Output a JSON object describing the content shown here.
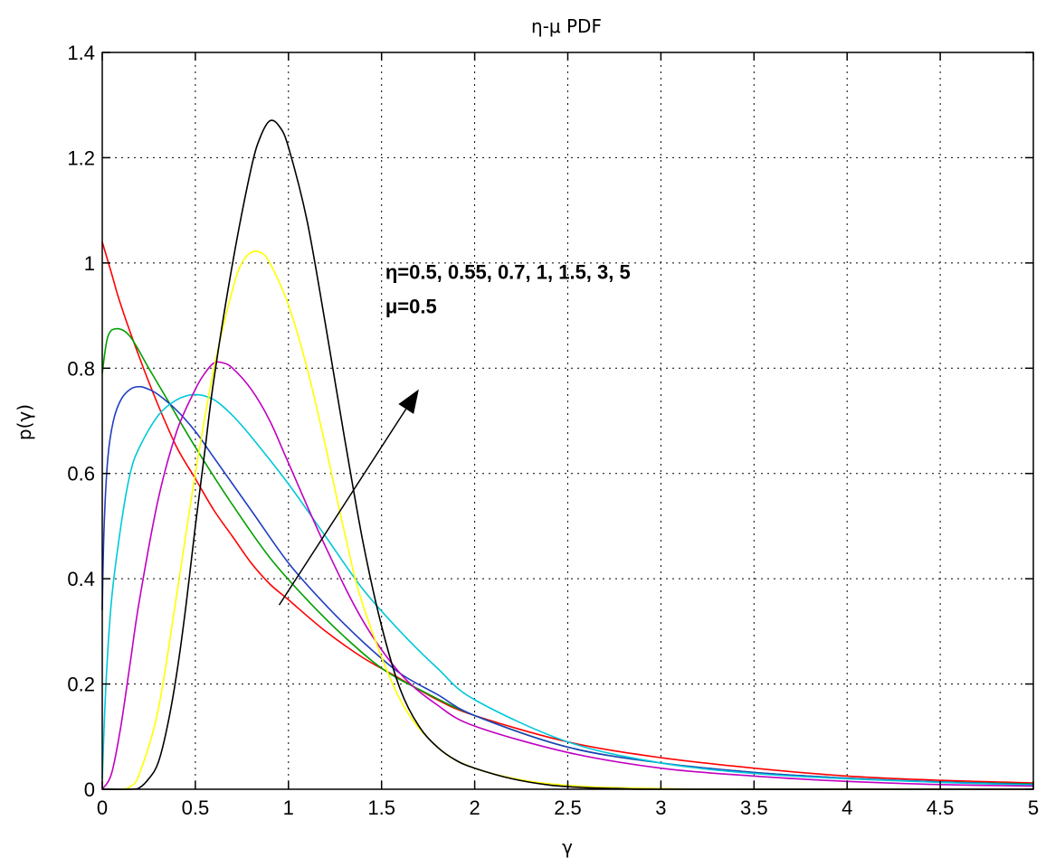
{
  "chart_data": {
    "type": "line",
    "title": "η-μ PDF",
    "xlabel": "γ",
    "ylabel": "p(γ)",
    "xlim": [
      0,
      5
    ],
    "ylim": [
      0,
      1.4
    ],
    "xticks": [
      0,
      0.5,
      1,
      1.5,
      2,
      2.5,
      3,
      3.5,
      4,
      4.5,
      5
    ],
    "xtick_labels": [
      "0",
      "0.5",
      "1",
      "1.5",
      "2",
      "2.5",
      "3",
      "3.5",
      "4",
      "4.5",
      "5"
    ],
    "yticks": [
      0,
      0.2,
      0.4,
      0.6,
      0.8,
      1,
      1.2,
      1.4
    ],
    "ytick_labels": [
      "0",
      "0.2",
      "0.4",
      "0.6",
      "0.8",
      "1",
      "1.2",
      "1.4"
    ],
    "grid": true,
    "annotation": {
      "lines": [
        "η=0.5, 0.55, 0.7, 1, 1.5, 3, 5",
        "μ=0.5"
      ],
      "text_anchor": [
        1.52,
        0.97
      ],
      "arrow_from": [
        0.95,
        0.35
      ],
      "arrow_to": [
        1.7,
        0.76
      ]
    },
    "series": [
      {
        "color": "#ff0000",
        "x": [
          0,
          0.05,
          0.1,
          0.2,
          0.3,
          0.4,
          0.5,
          0.6,
          0.7,
          0.8,
          0.9,
          1.0,
          1.2,
          1.4,
          1.6,
          1.8,
          2.0,
          2.5,
          3.0,
          3.5,
          4.0,
          4.5,
          5.0
        ],
        "y": [
          1.04,
          0.98,
          0.92,
          0.82,
          0.73,
          0.65,
          0.59,
          0.53,
          0.48,
          0.43,
          0.39,
          0.36,
          0.3,
          0.25,
          0.21,
          0.17,
          0.14,
          0.09,
          0.06,
          0.04,
          0.025,
          0.017,
          0.012
        ]
      },
      {
        "color": "#00a000",
        "x": [
          0,
          0.03,
          0.08,
          0.15,
          0.25,
          0.35,
          0.5,
          0.7,
          0.9,
          1.1,
          1.3,
          1.5,
          1.7,
          2.0,
          2.5,
          3.0,
          3.5,
          4.0,
          4.5,
          5.0
        ],
        "y": [
          0.79,
          0.86,
          0.875,
          0.86,
          0.8,
          0.74,
          0.65,
          0.54,
          0.44,
          0.36,
          0.29,
          0.23,
          0.19,
          0.14,
          0.08,
          0.05,
          0.032,
          0.021,
          0.014,
          0.01
        ]
      },
      {
        "color": "#1f3fbf",
        "x": [
          0,
          0.01,
          0.03,
          0.06,
          0.1,
          0.15,
          0.2,
          0.25,
          0.3,
          0.4,
          0.5,
          0.6,
          0.8,
          1.0,
          1.2,
          1.4,
          1.6,
          1.8,
          2.0,
          2.5,
          3.0,
          3.5,
          4.0,
          4.5,
          5.0
        ],
        "y": [
          0.34,
          0.5,
          0.63,
          0.7,
          0.74,
          0.76,
          0.765,
          0.76,
          0.75,
          0.72,
          0.68,
          0.63,
          0.53,
          0.43,
          0.35,
          0.28,
          0.22,
          0.18,
          0.14,
          0.08,
          0.05,
          0.032,
          0.021,
          0.014,
          0.009
        ]
      },
      {
        "color": "#00c8d8",
        "x": [
          0,
          0.02,
          0.05,
          0.1,
          0.15,
          0.2,
          0.3,
          0.4,
          0.5,
          0.6,
          0.7,
          0.8,
          1.0,
          1.2,
          1.4,
          1.6,
          1.8,
          2.0,
          2.5,
          3.0,
          3.5,
          4.0,
          4.5,
          5.0
        ],
        "y": [
          0.02,
          0.2,
          0.36,
          0.5,
          0.6,
          0.65,
          0.71,
          0.74,
          0.75,
          0.74,
          0.71,
          0.67,
          0.58,
          0.48,
          0.38,
          0.3,
          0.23,
          0.17,
          0.09,
          0.05,
          0.03,
          0.02,
          0.013,
          0.008
        ]
      },
      {
        "color": "#c000c0",
        "x": [
          0,
          0.05,
          0.1,
          0.15,
          0.2,
          0.3,
          0.4,
          0.5,
          0.55,
          0.6,
          0.65,
          0.7,
          0.8,
          0.9,
          1.0,
          1.2,
          1.4,
          1.6,
          1.8,
          2.0,
          2.5,
          3.0,
          3.5,
          4.0,
          4.5,
          5.0
        ],
        "y": [
          0,
          0.03,
          0.12,
          0.24,
          0.36,
          0.55,
          0.68,
          0.76,
          0.79,
          0.81,
          0.81,
          0.8,
          0.76,
          0.7,
          0.62,
          0.46,
          0.32,
          0.22,
          0.16,
          0.12,
          0.07,
          0.04,
          0.025,
          0.015,
          0.009,
          0.006
        ]
      },
      {
        "color": "#ffff00",
        "x": [
          0,
          0.1,
          0.15,
          0.2,
          0.3,
          0.4,
          0.5,
          0.6,
          0.7,
          0.75,
          0.8,
          0.85,
          0.9,
          1.0,
          1.1,
          1.2,
          1.3,
          1.4,
          1.6,
          1.8,
          2.0,
          2.3,
          2.6,
          2.9,
          3.2,
          3.5,
          4.0,
          4.5,
          5.0
        ],
        "y": [
          0,
          0,
          0.005,
          0.03,
          0.15,
          0.37,
          0.6,
          0.8,
          0.95,
          1.0,
          1.02,
          1.02,
          1.0,
          0.92,
          0.8,
          0.65,
          0.49,
          0.35,
          0.17,
          0.08,
          0.04,
          0.015,
          0.005,
          0.002,
          0,
          0,
          0,
          0,
          0
        ]
      },
      {
        "color": "#000000",
        "x": [
          0,
          0.15,
          0.2,
          0.25,
          0.3,
          0.35,
          0.4,
          0.45,
          0.5,
          0.55,
          0.6,
          0.7,
          0.8,
          0.85,
          0.9,
          0.95,
          1.0,
          1.1,
          1.2,
          1.3,
          1.4,
          1.5,
          1.6,
          1.7,
          1.8,
          1.9,
          2.0,
          2.2,
          2.4,
          2.6,
          2.8,
          3.0,
          4.0,
          5.0
        ],
        "y": [
          0,
          0,
          0.003,
          0.02,
          0.05,
          0.12,
          0.22,
          0.35,
          0.5,
          0.64,
          0.78,
          1.0,
          1.18,
          1.24,
          1.27,
          1.26,
          1.22,
          1.08,
          0.88,
          0.67,
          0.47,
          0.31,
          0.19,
          0.12,
          0.08,
          0.055,
          0.04,
          0.02,
          0.008,
          0.003,
          0.001,
          0,
          0,
          0
        ]
      }
    ]
  }
}
